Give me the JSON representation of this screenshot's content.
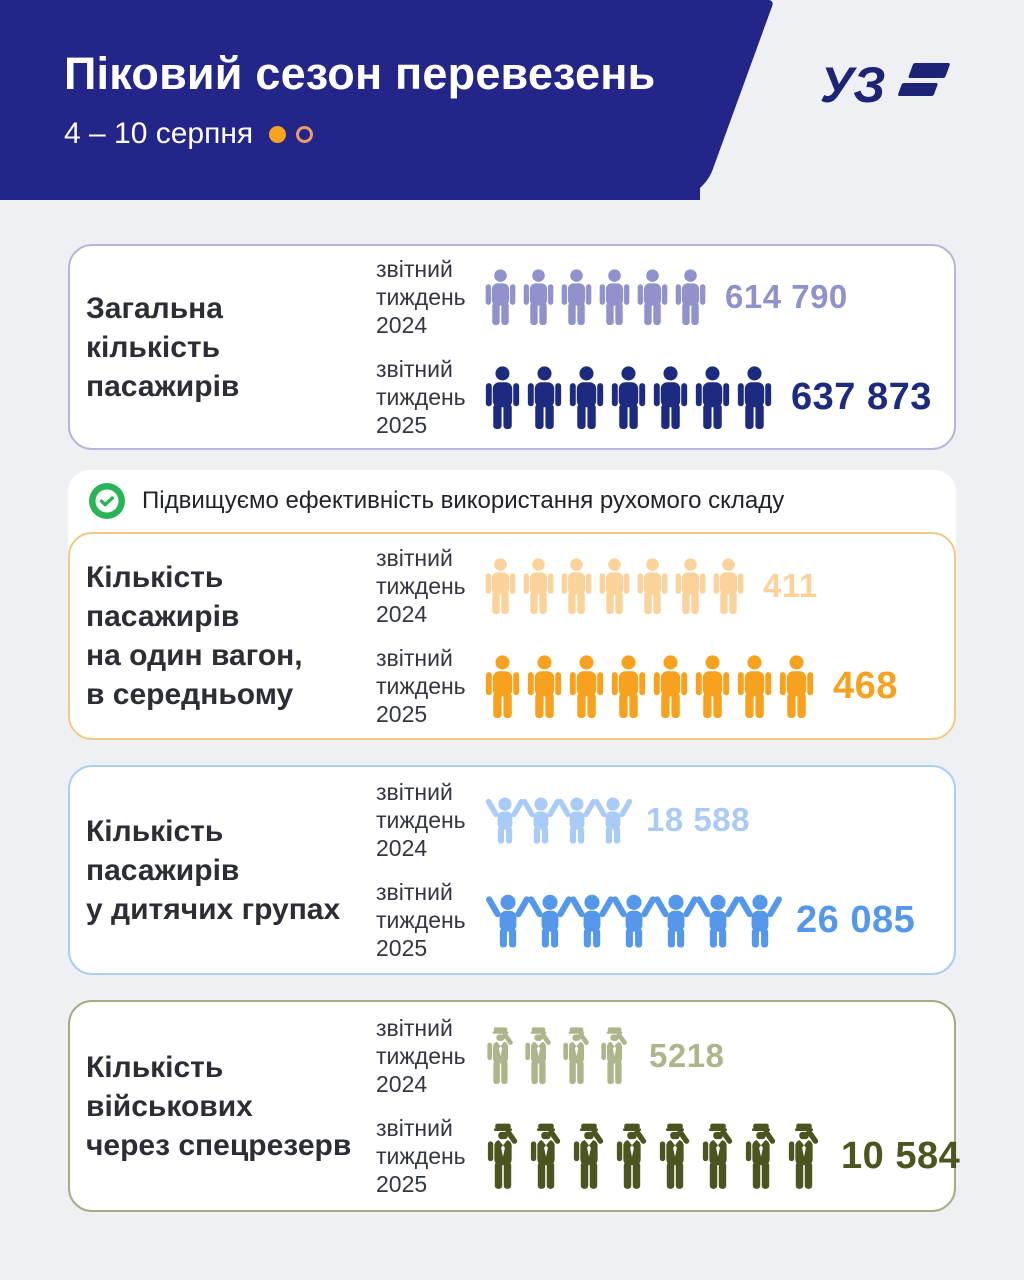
{
  "page": {
    "background": "#eff0f4"
  },
  "header": {
    "title": "Піковий сезон перевезень",
    "subtitle": "4 – 10 серпня",
    "background": "#232688",
    "accent_dot_color": "#f6a31d",
    "outline_dot_color": "#eb9d66",
    "logo_text": "УЗ",
    "logo_color": "#1d2475"
  },
  "note": {
    "text": "Підвищуємо ефективність використання рухомого складу",
    "check_color": "#29b457"
  },
  "cards": [
    {
      "title": "Загальна\nкількість пасажирів",
      "border_color": "#b5b7d9",
      "rows": [
        {
          "label": "звітний тиждень 2024",
          "icon": "person",
          "count": 6,
          "color": "#8f92cb",
          "value": "614 790"
        },
        {
          "label": "звітний тиждень 2025",
          "icon": "person",
          "count": 7,
          "color": "#1c2a80",
          "value": "637 873"
        }
      ]
    },
    {
      "title": "Кількість пасажирів\nна один вагон,\nв середньому",
      "border_color": "#f4c987",
      "rows": [
        {
          "label": "звітний тиждень 2024",
          "icon": "person",
          "count": 7,
          "color": "#fbd39a",
          "value": "411"
        },
        {
          "label": "звітний тиждень 2025",
          "icon": "person",
          "count": 8,
          "color": "#f7a11f",
          "value": "468"
        }
      ]
    },
    {
      "title": "Кількість пасажирів\nу дитячих групах",
      "border_color": "#abcef3",
      "rows": [
        {
          "label": "звітний тиждень 2024",
          "icon": "child",
          "count": 4,
          "color": "#a9cbf6",
          "value": "18 588"
        },
        {
          "label": "звітний тиждень 2025",
          "icon": "child",
          "count": 7,
          "color": "#5597eb",
          "value": "26 085"
        }
      ]
    },
    {
      "title": "Кількість військових\nчерез спецрезерв",
      "border_color": "#a2ad82",
      "rows": [
        {
          "label": "звітний тиждень 2024",
          "icon": "soldier",
          "count": 4,
          "color": "#adb58c",
          "value": "5218"
        },
        {
          "label": "звітний тиждень 2025",
          "icon": "soldier",
          "count": 8,
          "color": "#4c541f",
          "value": "10 584"
        }
      ]
    }
  ],
  "chart_data": {
    "type": "bar",
    "subtype": "pictogram-infographic",
    "title": "Піковий сезон перевезень",
    "subtitle": "4 – 10 серпня",
    "categories": [
      "Загальна кількість пасажирів",
      "Кількість пасажирів на один вагон, в середньому",
      "Кількість пасажирів у дитячих групах",
      "Кількість військових через спецрезерв"
    ],
    "series": [
      {
        "name": "звітний тиждень 2024",
        "values": [
          614790,
          411,
          18588,
          5218
        ]
      },
      {
        "name": "звітний тиждень 2025",
        "values": [
          637873,
          468,
          26085,
          10584
        ]
      }
    ],
    "pictogram_counts": {
      "звітний тиждень 2024": [
        6,
        7,
        4,
        4
      ],
      "звітний тиждень 2025": [
        7,
        8,
        7,
        8
      ]
    },
    "legend_position": "inline-left",
    "grid": false
  }
}
